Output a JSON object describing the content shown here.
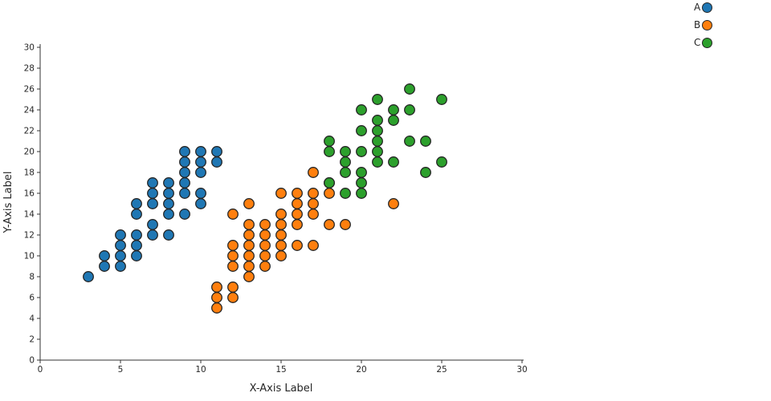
{
  "legend": {
    "position": "top-right",
    "items": [
      {
        "label": "A",
        "color": "#1f77b4"
      },
      {
        "label": "B",
        "color": "#ff7f0e"
      },
      {
        "label": "C",
        "color": "#2ca02c"
      }
    ]
  },
  "chart_data": {
    "type": "scatter",
    "title": "",
    "xlabel": "X-Axis Label",
    "ylabel": "Y-Axis Label",
    "xlim": [
      0,
      30
    ],
    "ylim": [
      0,
      30
    ],
    "xticks": [
      0,
      5,
      10,
      15,
      20,
      25,
      30
    ],
    "yticks": [
      0,
      2,
      4,
      6,
      8,
      10,
      12,
      14,
      16,
      18,
      20,
      22,
      24,
      26,
      28,
      30
    ],
    "grid": false,
    "legend_position": "top-right",
    "marker_edge_color": "#262626",
    "series": [
      {
        "name": "A",
        "color": "#1f77b4",
        "points": [
          [
            3,
            8
          ],
          [
            4,
            9
          ],
          [
            4,
            10
          ],
          [
            5,
            9
          ],
          [
            5,
            10
          ],
          [
            5,
            11
          ],
          [
            5,
            12
          ],
          [
            6,
            10
          ],
          [
            6,
            11
          ],
          [
            6,
            12
          ],
          [
            6,
            14
          ],
          [
            6,
            15
          ],
          [
            7,
            12
          ],
          [
            7,
            13
          ],
          [
            7,
            15
          ],
          [
            7,
            16
          ],
          [
            7,
            17
          ],
          [
            8,
            12
          ],
          [
            8,
            14
          ],
          [
            8,
            15
          ],
          [
            8,
            16
          ],
          [
            8,
            17
          ],
          [
            9,
            14
          ],
          [
            9,
            16
          ],
          [
            9,
            17
          ],
          [
            9,
            18
          ],
          [
            9,
            19
          ],
          [
            9,
            20
          ],
          [
            10,
            15
          ],
          [
            10,
            16
          ],
          [
            10,
            18
          ],
          [
            10,
            19
          ],
          [
            10,
            20
          ],
          [
            11,
            19
          ],
          [
            11,
            20
          ]
        ]
      },
      {
        "name": "B",
        "color": "#ff7f0e",
        "points": [
          [
            11,
            5
          ],
          [
            11,
            6
          ],
          [
            11,
            7
          ],
          [
            12,
            6
          ],
          [
            12,
            7
          ],
          [
            12,
            9
          ],
          [
            12,
            10
          ],
          [
            12,
            11
          ],
          [
            12,
            14
          ],
          [
            13,
            8
          ],
          [
            13,
            9
          ],
          [
            13,
            10
          ],
          [
            13,
            11
          ],
          [
            13,
            12
          ],
          [
            13,
            13
          ],
          [
            13,
            15
          ],
          [
            14,
            9
          ],
          [
            14,
            10
          ],
          [
            14,
            11
          ],
          [
            14,
            12
          ],
          [
            14,
            13
          ],
          [
            15,
            10
          ],
          [
            15,
            11
          ],
          [
            15,
            12
          ],
          [
            15,
            13
          ],
          [
            15,
            14
          ],
          [
            15,
            16
          ],
          [
            16,
            11
          ],
          [
            16,
            13
          ],
          [
            16,
            14
          ],
          [
            16,
            15
          ],
          [
            16,
            16
          ],
          [
            17,
            11
          ],
          [
            17,
            14
          ],
          [
            17,
            15
          ],
          [
            17,
            16
          ],
          [
            17,
            18
          ],
          [
            18,
            13
          ],
          [
            18,
            16
          ],
          [
            18,
            17
          ],
          [
            19,
            13
          ],
          [
            22,
            15
          ]
        ]
      },
      {
        "name": "C",
        "color": "#2ca02c",
        "points": [
          [
            18,
            17
          ],
          [
            18,
            20
          ],
          [
            18,
            21
          ],
          [
            19,
            16
          ],
          [
            19,
            18
          ],
          [
            19,
            19
          ],
          [
            19,
            20
          ],
          [
            20,
            16
          ],
          [
            20,
            17
          ],
          [
            20,
            18
          ],
          [
            20,
            20
          ],
          [
            20,
            22
          ],
          [
            20,
            24
          ],
          [
            21,
            19
          ],
          [
            21,
            20
          ],
          [
            21,
            21
          ],
          [
            21,
            22
          ],
          [
            21,
            23
          ],
          [
            21,
            25
          ],
          [
            22,
            19
          ],
          [
            22,
            23
          ],
          [
            22,
            24
          ],
          [
            23,
            21
          ],
          [
            23,
            24
          ],
          [
            23,
            26
          ],
          [
            24,
            18
          ],
          [
            24,
            21
          ],
          [
            25,
            19
          ],
          [
            25,
            25
          ]
        ]
      }
    ]
  }
}
